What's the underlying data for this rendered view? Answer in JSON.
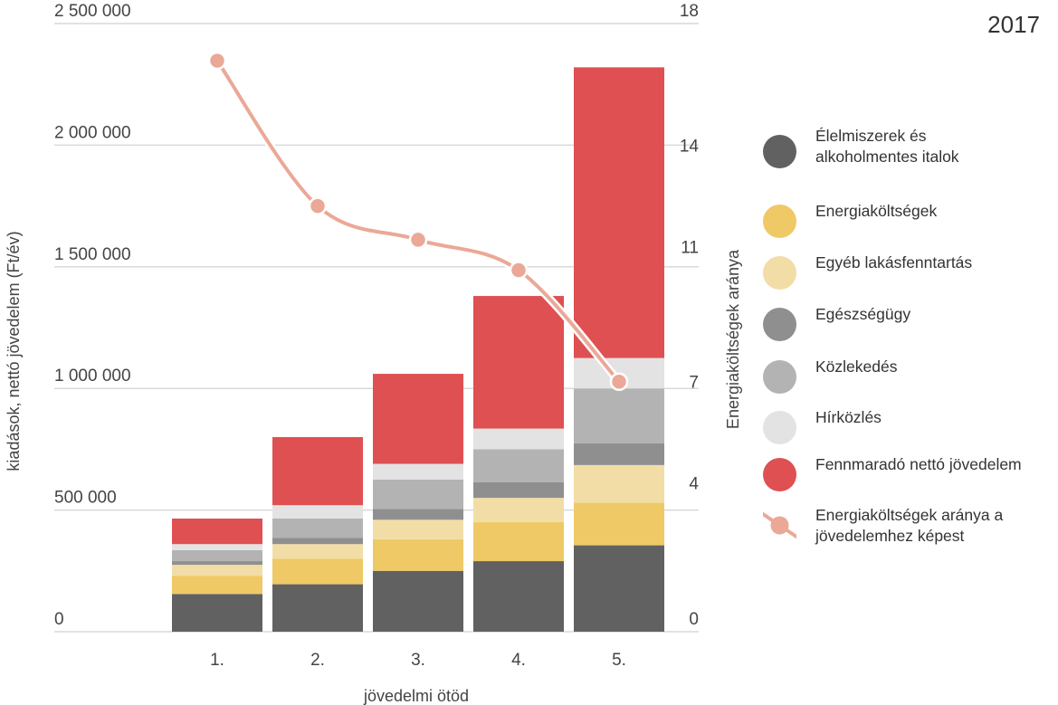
{
  "year_label": "2017",
  "chart_data": {
    "type": "bar",
    "stacked": true,
    "categories": [
      "1.",
      "2.",
      "3.",
      "4.",
      "5."
    ],
    "xlabel": "jövedelmi ötöd",
    "ylabel": "kiadások, nettó jövedelem (Ft/év)",
    "y2label": "Energiaköltségek aránya",
    "ylim": [
      0,
      2500000
    ],
    "y2lim": [
      0,
      18
    ],
    "yticks": [
      0,
      500000,
      1000000,
      1500000,
      2000000,
      2500000
    ],
    "ytick_labels": [
      "0",
      "500 000",
      "1 000 000",
      "1 500 000",
      "2 000 000",
      "2 500 000"
    ],
    "y2ticks": [
      0,
      4,
      7,
      11,
      14,
      18
    ],
    "y2tick_labels": [
      "0",
      "4",
      "7",
      "11",
      "14",
      "18"
    ],
    "grid": true,
    "legend_position": "right",
    "series": [
      {
        "name": "Élelmiszerek és alkoholmentes italok",
        "color": "#616161",
        "values": [
          155000,
          195000,
          250000,
          290000,
          355000
        ]
      },
      {
        "name": "Energiaköltségek",
        "color": "#EFC966",
        "values": [
          75000,
          105000,
          130000,
          160000,
          175000
        ]
      },
      {
        "name": "Egyéb lakásfenntartás",
        "color": "#F2DDA6",
        "values": [
          45000,
          60000,
          80000,
          100000,
          155000
        ]
      },
      {
        "name": "Egészségügy",
        "color": "#8F8F8F",
        "values": [
          15000,
          25000,
          45000,
          65000,
          90000
        ]
      },
      {
        "name": "Közlekedés",
        "color": "#B3B3B3",
        "values": [
          45000,
          80000,
          120000,
          135000,
          225000
        ]
      },
      {
        "name": "Hírközlés",
        "color": "#E3E3E3",
        "values": [
          25000,
          55000,
          65000,
          85000,
          125000
        ]
      },
      {
        "name": "Fennmaradó nettó jövedelem",
        "color": "#DE5052",
        "values": [
          105000,
          280000,
          370000,
          545000,
          1195000
        ]
      }
    ],
    "line_series": {
      "name": "Energiaköltségek aránya a jövedelemhez képest",
      "color": "#EBA897",
      "axis": "right",
      "values": [
        16.9,
        12.6,
        11.6,
        10.7,
        7.4
      ]
    }
  }
}
